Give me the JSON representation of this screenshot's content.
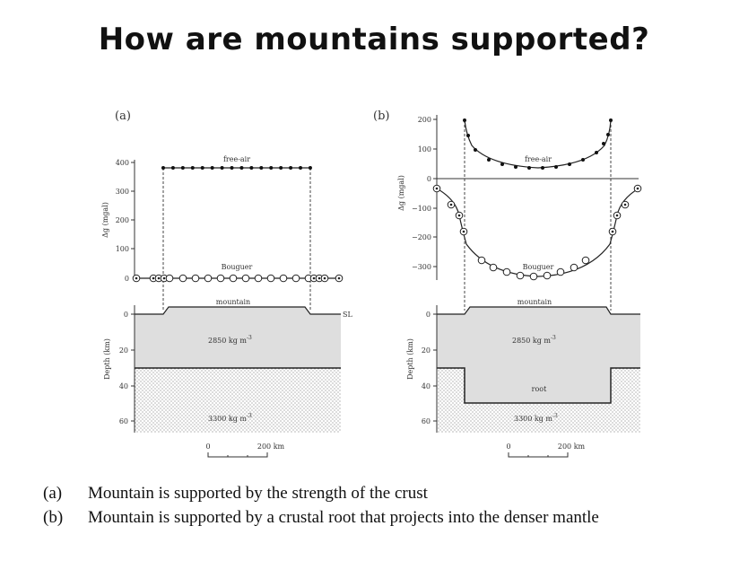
{
  "title": "How are mountains supported?",
  "panels": {
    "a": {
      "label": "(a)",
      "gravity_axis_label": "Δg (mgal)",
      "gravity_ticks": [
        "400",
        "300",
        "200",
        "100",
        "0"
      ],
      "free_air_label": "free-air",
      "bouguer_label": "Bouguer",
      "mountain_label": "mountain",
      "sea_level_label": "SL",
      "crust_density": "2850 kg m",
      "mantle_density": "3300 kg m",
      "density_exponent": "-3",
      "depth_axis_label": "Depth (km)",
      "depth_ticks": [
        "0",
        "20",
        "40",
        "60"
      ],
      "scale_start": "0",
      "scale_end": "200 km"
    },
    "b": {
      "label": "(b)",
      "gravity_axis_label": "Δg (mgal)",
      "gravity_ticks": [
        "200",
        "100",
        "0",
        "−100",
        "−200",
        "−300"
      ],
      "free_air_label": "free-air",
      "bouguer_label": "Bouguer",
      "mountain_label": "mountain",
      "crust_density": "2850 kg m",
      "mantle_density": "3300 kg m",
      "density_exponent": "-3",
      "root_label": "root",
      "depth_axis_label": "Depth (km)",
      "depth_ticks": [
        "0",
        "20",
        "40",
        "60"
      ],
      "scale_start": "0",
      "scale_end": "200 km"
    }
  },
  "captions": [
    {
      "label": "(a)",
      "text": "Mountain is supported by the strength of the crust"
    },
    {
      "label": "(b)",
      "text": "Mountain is supported by a crustal root that projects into the denser mantle"
    }
  ]
}
